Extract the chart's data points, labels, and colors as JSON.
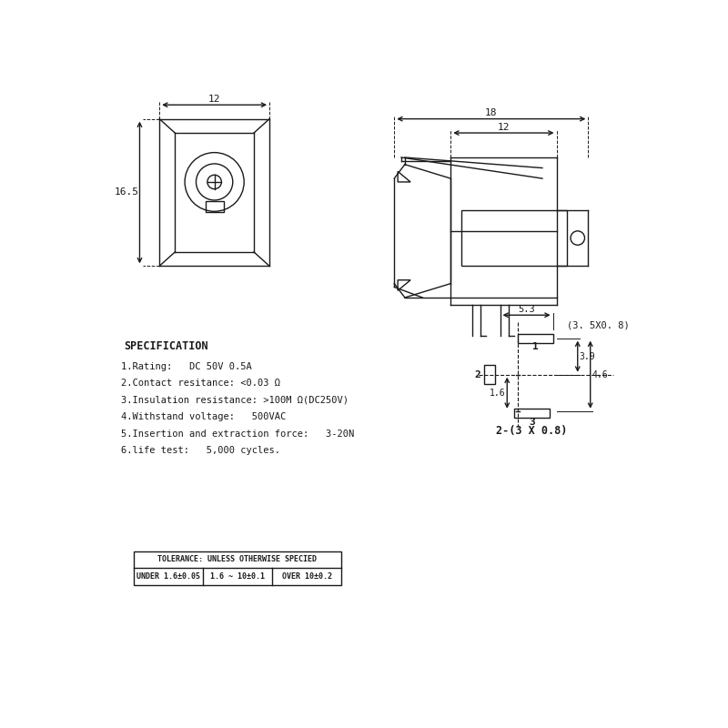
{
  "bg_color": "#ffffff",
  "line_color": "#1a1a1a",
  "spec_title": "SPECIFICATION",
  "spec_lines": [
    "1.Rating:   DC 50V 0.5A",
    "2.Contact resitance: <0.03 Ω",
    "3.Insulation resistance: >100M Ω(DC250V)",
    "4.Withstand voltage:   500VAC",
    "5.Insertion and extraction force:   3-20N",
    "6.life test:   5,000 cycles."
  ],
  "tolerance_header": "TOLERANCE: UNLESS OTHERWISE SPECIED",
  "tolerance_row": [
    "UNDER 1.6±0.05",
    "1.6 ~ 10±0.1",
    "OVER 10±0.2"
  ]
}
